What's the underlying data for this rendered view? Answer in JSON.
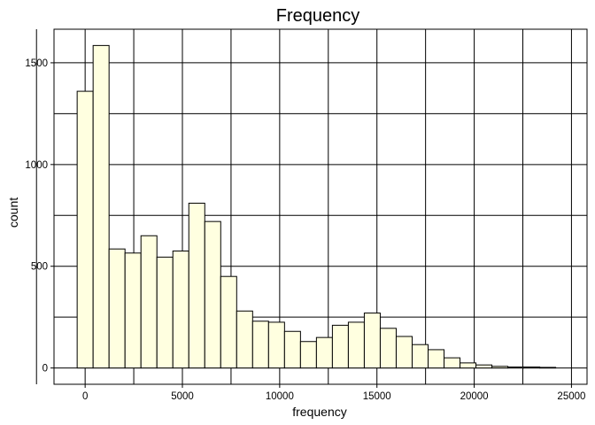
{
  "chart_data": {
    "type": "bar",
    "title": "Frequency",
    "xlabel": "frequency",
    "ylabel": "count",
    "xlim": [
      -1600,
      25800
    ],
    "ylim": [
      -80,
      1665
    ],
    "x_major_ticks": [
      0,
      5000,
      10000,
      15000,
      20000,
      25000
    ],
    "x_major_tick_labels": [
      "0",
      "5000",
      "10000",
      "15000",
      "20000",
      "25000"
    ],
    "x_minor_grid": [
      -2500,
      2500,
      7500,
      12500,
      17500,
      22500
    ],
    "y_major_ticks": [
      0,
      500,
      1000,
      1500
    ],
    "y_major_tick_labels": [
      "0",
      "500",
      "1000",
      "1500"
    ],
    "y_minor_grid": [
      250,
      750,
      1250
    ],
    "grid": true,
    "bin_width": 820,
    "bin_centers": [
      0,
      820,
      1640,
      2460,
      3280,
      4100,
      4920,
      5740,
      6560,
      7380,
      8200,
      9020,
      9840,
      10660,
      11480,
      12300,
      13120,
      13940,
      14760,
      15580,
      16400,
      17220,
      18040,
      18860,
      19680,
      20500,
      21320,
      22140,
      22960,
      23780
    ],
    "values": [
      1360,
      1585,
      585,
      565,
      650,
      545,
      575,
      810,
      720,
      450,
      280,
      230,
      225,
      180,
      130,
      150,
      210,
      225,
      270,
      195,
      155,
      115,
      90,
      50,
      25,
      15,
      8,
      5,
      5,
      3
    ],
    "colors": {
      "bar_fill": "#ffffe0",
      "bar_stroke": "#000000",
      "grid": "#000000",
      "background": "#ffffff"
    }
  }
}
